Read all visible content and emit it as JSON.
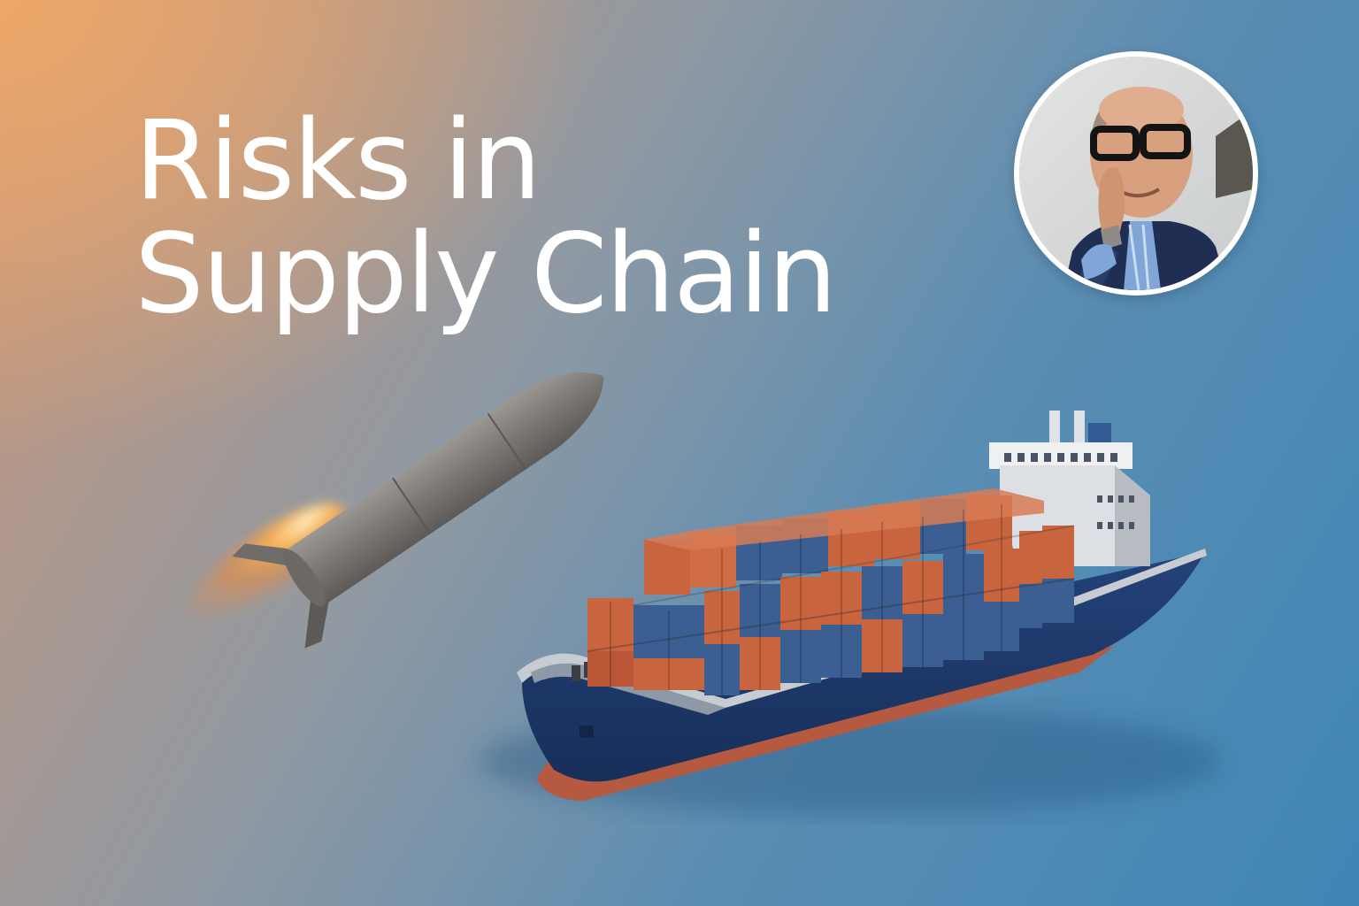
{
  "headline": {
    "line1": "Risks in",
    "line2": "Supply Chain"
  },
  "avatar": {
    "icon": "person-portrait-icon"
  },
  "illustration": {
    "missile_icon": "missile-icon",
    "ship_icon": "container-ship-icon",
    "colors": {
      "container_orange": "#c8643e",
      "container_blue": "#3b5f92",
      "hull": "#1f3c6b",
      "keel": "#b55a40",
      "flame": "#f3a24a"
    }
  }
}
